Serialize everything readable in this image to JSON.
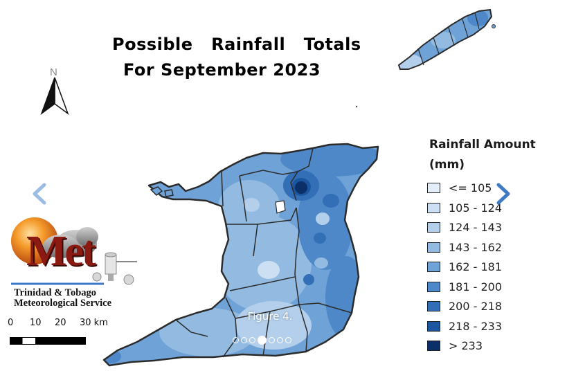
{
  "map": {
    "title_line1": "Possible   Rainfall   Totals",
    "title_line2": "For September 2023",
    "north_label": "N",
    "legend": {
      "title_line1": "Rainfall Amount",
      "title_line2": "(mm)",
      "items": [
        {
          "label": "<= 105",
          "color": "#e4eef9"
        },
        {
          "label": "105 - 124",
          "color": "#cddff2"
        },
        {
          "label": "124 - 143",
          "color": "#b4cfeb"
        },
        {
          "label": "143 - 162",
          "color": "#93bbe2"
        },
        {
          "label": "162 - 181",
          "color": "#6fa2d6"
        },
        {
          "label": "181 - 200",
          "color": "#4e88c8"
        },
        {
          "label": "200 - 218",
          "color": "#336fb7"
        },
        {
          "label": "218 - 233",
          "color": "#1d56a0"
        },
        {
          "label": "> 233",
          "color": "#0b2f67"
        }
      ]
    },
    "scale_bar": {
      "labels": [
        "0",
        "10",
        "20",
        "30 km"
      ]
    },
    "logo": {
      "wordmark": "Met",
      "org_line1": "Trinidad & Tobago",
      "org_line2": "Meteorological Service"
    }
  },
  "carousel": {
    "caption": "Figure 4.",
    "slide_count": 7,
    "active_index": 3,
    "prev_icon": "chevron-left-icon",
    "next_icon": "chevron-right-icon"
  }
}
